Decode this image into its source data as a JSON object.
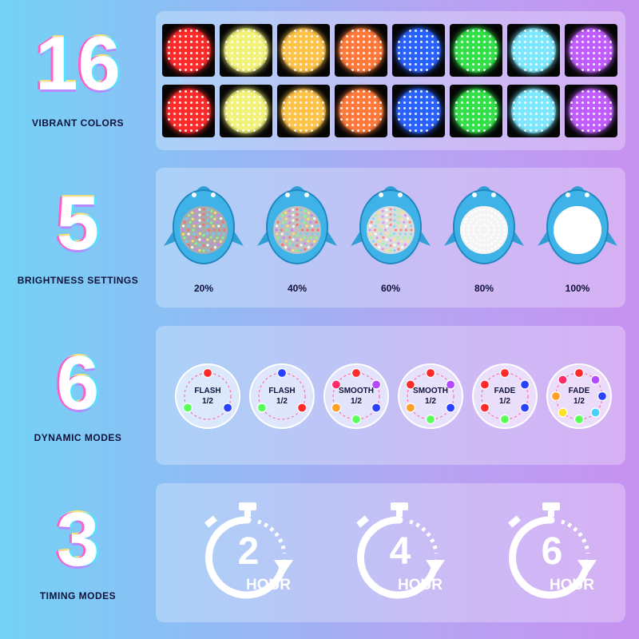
{
  "sections": {
    "colors": {
      "number": "16",
      "label": "VIBRANT COLORS"
    },
    "brightness": {
      "number": "5",
      "label": "BRIGHTNESS SETTINGS"
    },
    "modes": {
      "number": "6",
      "label": "DYNAMIC MODES"
    },
    "timing": {
      "number": "3",
      "label": "TIMING MODES"
    }
  },
  "color_swatches": [
    [
      "#ff2a2a",
      "#f2f27a",
      "#ffc34a",
      "#ff7a3a",
      "#2a62ff",
      "#33e04a",
      "#7ce8ff",
      "#c15cff"
    ],
    [
      "#ff2a2a",
      "#f2f27a",
      "#ffc34a",
      "#ff7a3a",
      "#2a62ff",
      "#33e04a",
      "#7ce8ff",
      "#c15cff"
    ]
  ],
  "brightness_levels": [
    {
      "label": "20%",
      "level": 0.2
    },
    {
      "label": "40%",
      "level": 0.4
    },
    {
      "label": "60%",
      "level": 0.6
    },
    {
      "label": "80%",
      "level": 0.8
    },
    {
      "label": "100%",
      "level": 1.0
    }
  ],
  "modes": [
    {
      "name": "FLASH",
      "sub": "1/2"
    },
    {
      "name": "FLASH",
      "sub": "1/2"
    },
    {
      "name": "SMOOTH",
      "sub": "1/2"
    },
    {
      "name": "SMOOTH",
      "sub": "1/2"
    },
    {
      "name": "FADE",
      "sub": "1/2"
    },
    {
      "name": "FADE",
      "sub": "1/2"
    }
  ],
  "timers": [
    {
      "value": "2",
      "unit": "HOUR"
    },
    {
      "value": "4",
      "unit": "HOUR"
    },
    {
      "value": "6",
      "unit": "HOUR"
    }
  ]
}
